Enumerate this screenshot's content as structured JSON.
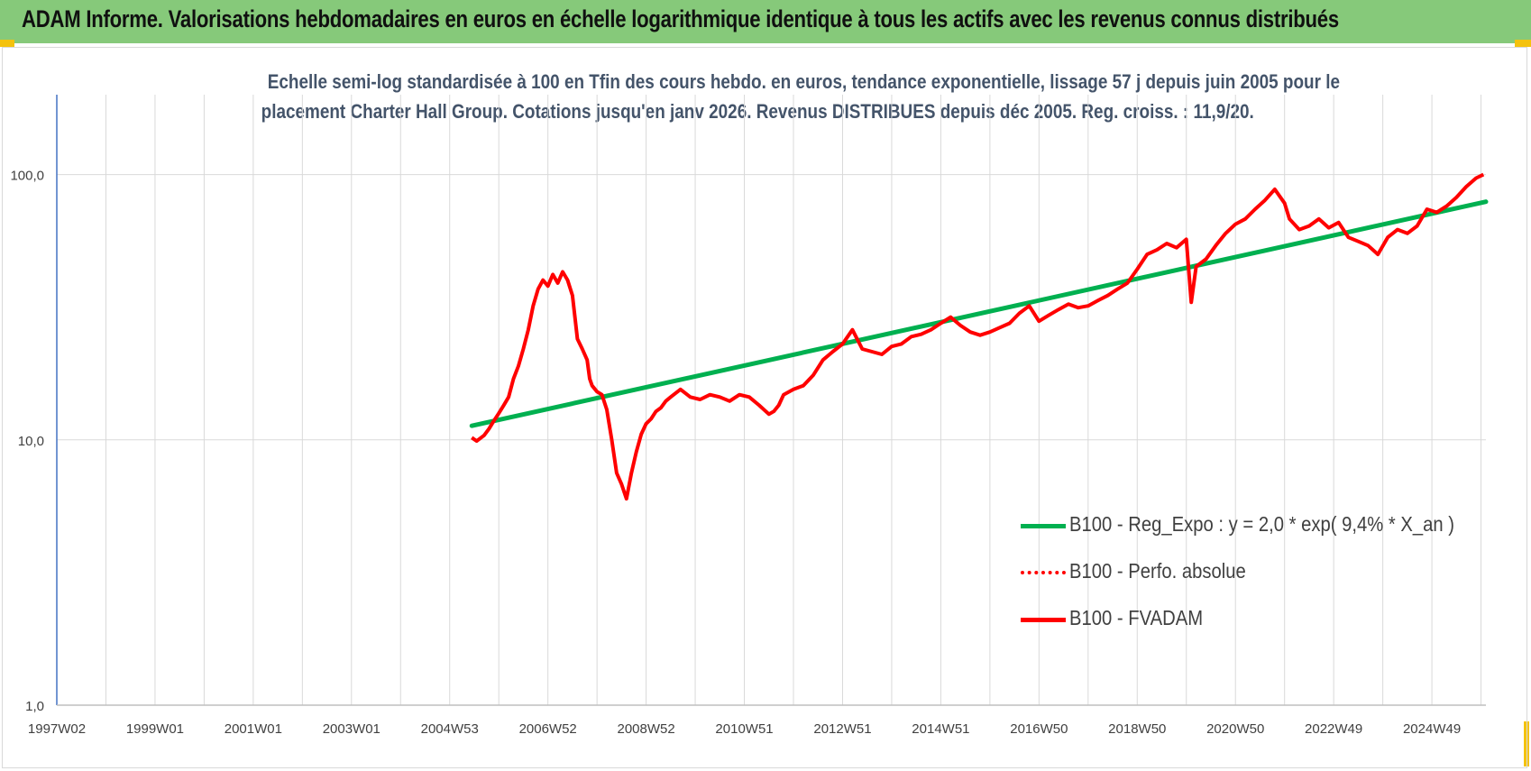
{
  "banner": {
    "title": "ADAM Informe. Valorisations hebdomadaires en euros en échelle logarithmique identique à tous les actifs avec les revenus connus distribués"
  },
  "colors": {
    "banner_bg": "#86c97a",
    "corner_marks": "#f4c20d",
    "title_text": "#44546a",
    "regression": "#00b050",
    "fvadam": "#ff0000",
    "perfo": "#ff0000",
    "grid": "#d9d9d9",
    "y_axis": "#4472c4"
  },
  "chart_data": {
    "type": "line",
    "title_line1": "Echelle semi-log standardisée à 100 en Tfin des cours hebdo. en euros, tendance exponentielle, lissage 57 j depuis juin 2005 pour le",
    "title_line2": "placement Charter Hall Group. Cotations jusqu'en janv 2026. Revenus DISTRIBUES depuis déc 2005. Reg. croiss. : 11,9/20.",
    "y_scale": "log",
    "ylim": [
      1,
      200
    ],
    "y_ticks": [
      1,
      10,
      100
    ],
    "y_tick_labels": [
      "1,0",
      "10,0",
      "100,0"
    ],
    "xlim": [
      1997.0,
      2026.1
    ],
    "x_ticks": [
      1997.0,
      1999.0,
      2001.0,
      2003.0,
      2005.0,
      2007.0,
      2009.0,
      2011.0,
      2013.0,
      2015.0,
      2017.0,
      2019.0,
      2021.0,
      2023.0,
      2025.0
    ],
    "x_tick_labels": [
      "1997W02",
      "1999W01",
      "2001W01",
      "2003W01",
      "2004W53",
      "2006W52",
      "2008W52",
      "2010W51",
      "2012W51",
      "2014W51",
      "2016W50",
      "2018W50",
      "2020W50",
      "2022W49",
      "2024W49"
    ],
    "grid": true,
    "legend_position": "bottom-right",
    "series": [
      {
        "name": "B100 - Reg_Expo : y = 2,0 * exp( 9,4% *  X_an )",
        "style": "solid",
        "color": "#00b050",
        "x": [
          2005.45,
          2026.1
        ],
        "y": [
          11.3,
          79.0
        ]
      },
      {
        "name": "B100 - Perfo. absolue",
        "style": "dotted",
        "color": "#ff0000",
        "x": [],
        "y": []
      },
      {
        "name": "B100 - FVADAM",
        "style": "solid",
        "color": "#ff0000",
        "x": [
          2005.45,
          2005.55,
          2005.7,
          2005.8,
          2005.9,
          2006.0,
          2006.1,
          2006.2,
          2006.3,
          2006.4,
          2006.5,
          2006.6,
          2006.7,
          2006.8,
          2006.9,
          2007.0,
          2007.1,
          2007.2,
          2007.3,
          2007.4,
          2007.5,
          2007.6,
          2007.7,
          2007.8,
          2007.85,
          2007.9,
          2008.0,
          2008.1,
          2008.2,
          2008.3,
          2008.4,
          2008.5,
          2008.6,
          2008.7,
          2008.8,
          2008.9,
          2009.0,
          2009.1,
          2009.2,
          2009.3,
          2009.4,
          2009.5,
          2009.7,
          2009.9,
          2010.1,
          2010.3,
          2010.5,
          2010.7,
          2010.9,
          2011.1,
          2011.3,
          2011.5,
          2011.6,
          2011.7,
          2011.8,
          2012.0,
          2012.2,
          2012.4,
          2012.6,
          2012.8,
          2013.0,
          2013.2,
          2013.4,
          2013.6,
          2013.8,
          2014.0,
          2014.2,
          2014.4,
          2014.6,
          2014.8,
          2015.0,
          2015.2,
          2015.4,
          2015.6,
          2015.8,
          2016.0,
          2016.2,
          2016.4,
          2016.6,
          2016.8,
          2017.0,
          2017.2,
          2017.4,
          2017.6,
          2017.8,
          2018.0,
          2018.2,
          2018.4,
          2018.6,
          2018.8,
          2019.0,
          2019.2,
          2019.4,
          2019.6,
          2019.8,
          2020.0,
          2020.1,
          2020.2,
          2020.4,
          2020.6,
          2020.8,
          2021.0,
          2021.2,
          2021.4,
          2021.6,
          2021.8,
          2022.0,
          2022.1,
          2022.3,
          2022.5,
          2022.7,
          2022.9,
          2023.1,
          2023.3,
          2023.5,
          2023.7,
          2023.9,
          2024.1,
          2024.3,
          2024.5,
          2024.7,
          2024.9,
          2025.1,
          2025.3,
          2025.5,
          2025.7,
          2025.9,
          2026.05
        ],
        "y": [
          10.2,
          9.9,
          10.4,
          11.0,
          11.8,
          12.6,
          13.5,
          14.5,
          17.0,
          19.0,
          22.0,
          26.0,
          32.0,
          37.0,
          40.0,
          38.0,
          42.0,
          39.0,
          43.0,
          40.0,
          35.0,
          24.0,
          22.0,
          20.0,
          17.0,
          16.0,
          15.2,
          14.8,
          13.0,
          10.0,
          7.5,
          6.8,
          6.0,
          7.5,
          9.0,
          10.5,
          11.5,
          12.0,
          12.8,
          13.2,
          14.0,
          14.5,
          15.5,
          14.5,
          14.2,
          14.8,
          14.5,
          14.0,
          14.8,
          14.5,
          13.5,
          12.5,
          12.8,
          13.5,
          14.8,
          15.5,
          16.0,
          17.5,
          20.0,
          21.5,
          23.0,
          26.0,
          22.0,
          21.5,
          21.0,
          22.5,
          23.0,
          24.5,
          25.0,
          26.0,
          27.5,
          29.0,
          27.0,
          25.5,
          24.8,
          25.5,
          26.5,
          27.5,
          30.0,
          32.0,
          28.0,
          29.5,
          31.0,
          32.5,
          31.5,
          32.0,
          33.5,
          35.0,
          37.0,
          39.0,
          44.0,
          50.0,
          52.0,
          55.0,
          53.0,
          57.0,
          33.0,
          45.0,
          48.0,
          54.0,
          60.0,
          65.0,
          68.0,
          74.0,
          80.0,
          88.0,
          78.0,
          68.0,
          62.0,
          64.0,
          68.0,
          63.0,
          66.0,
          58.0,
          56.0,
          54.0,
          50.0,
          58.0,
          62.0,
          60.0,
          64.0,
          74.0,
          72.0,
          76.0,
          82.0,
          90.0,
          97.0,
          100.0
        ]
      }
    ]
  }
}
